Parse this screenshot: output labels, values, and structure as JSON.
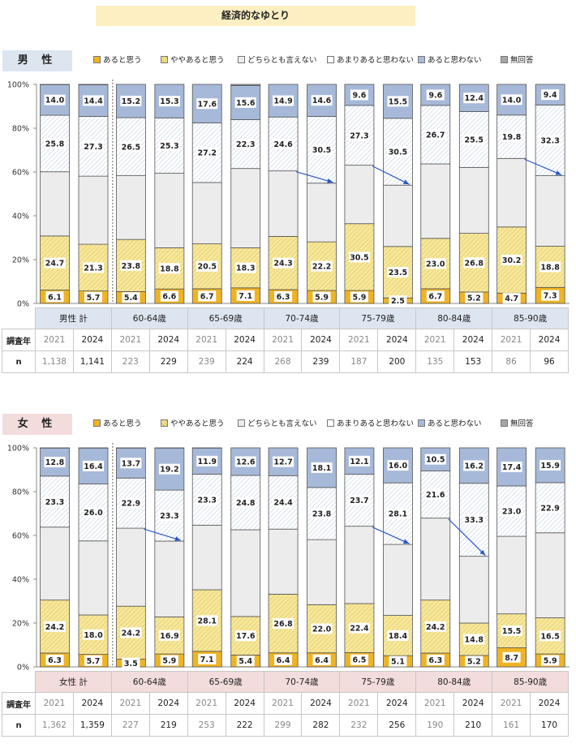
{
  "title": "経済的なゆとり",
  "legend": [
    {
      "label": "あると思う",
      "color": "#f0b423",
      "pattern": "solid"
    },
    {
      "label": "ややあると思う",
      "color": "#f7e79a",
      "pattern": "hatch"
    },
    {
      "label": "どちらとも言えない",
      "color": "#ececec",
      "pattern": "solid"
    },
    {
      "label": "あまりあると思わない",
      "color": "#ffffff",
      "pattern": "solid"
    },
    {
      "label": "あると思わない",
      "color": "#a6b9d9",
      "pattern": "solid"
    },
    {
      "label": "無回答",
      "color": "#a6a6a6",
      "pattern": "solid"
    }
  ],
  "colors": {
    "male_label_bg": "#dde5f1",
    "female_label_bg": "#f3dcdc",
    "male_header_bg": "#dde5f1",
    "female_header_bg": "#f3dcdc",
    "arrow": "#2a56c6",
    "bar_border": "#555555"
  },
  "y_ticks": [
    "0%",
    "20%",
    "40%",
    "60%",
    "80%",
    "100%"
  ],
  "row_labels": {
    "year": "調査年",
    "n": "n"
  },
  "chart_data": [
    {
      "type": "bar",
      "stacked": true,
      "panel": "男 性",
      "ylim": [
        0,
        100
      ],
      "groups": [
        "男性 計",
        "60-64歳",
        "65-69歳",
        "70-74歳",
        "75-79歳",
        "80-84歳",
        "85-90歳"
      ],
      "years": [
        "2021",
        "2024"
      ],
      "n": [
        [
          "1,138",
          "1,141"
        ],
        [
          "223",
          "229"
        ],
        [
          "239",
          "224"
        ],
        [
          "268",
          "239"
        ],
        [
          "187",
          "200"
        ],
        [
          "135",
          "153"
        ],
        [
          "86",
          "96"
        ]
      ],
      "bars": [
        [
          6.1,
          24.7,
          29.3,
          25.8,
          14.0,
          0.1
        ],
        [
          5.7,
          21.3,
          31.1,
          27.3,
          14.4,
          0.2
        ],
        [
          5.4,
          23.8,
          29.1,
          26.5,
          15.2,
          0.0
        ],
        [
          6.6,
          18.8,
          34.0,
          25.3,
          15.3,
          0.0
        ],
        [
          6.7,
          20.5,
          28.0,
          27.2,
          17.6,
          0.0
        ],
        [
          7.1,
          18.3,
          36.2,
          22.3,
          15.6,
          0.5
        ],
        [
          6.3,
          24.3,
          29.9,
          24.6,
          14.9,
          0.0
        ],
        [
          5.9,
          22.2,
          26.8,
          30.5,
          14.6,
          0.0
        ],
        [
          5.9,
          30.5,
          26.7,
          27.3,
          9.6,
          0.0
        ],
        [
          2.5,
          23.5,
          28.0,
          30.5,
          15.5,
          0.0
        ],
        [
          6.7,
          23.0,
          34.0,
          26.7,
          9.6,
          0.0
        ],
        [
          5.2,
          26.8,
          30.1,
          25.5,
          12.4,
          0.0
        ],
        [
          4.7,
          30.2,
          31.3,
          19.8,
          14.0,
          0.0
        ],
        [
          7.3,
          18.8,
          32.2,
          32.3,
          9.4,
          0.0
        ]
      ],
      "labels": [
        [
          "6.1",
          "24.7",
          "",
          "25.8",
          "14.0"
        ],
        [
          "5.7",
          "21.3",
          "",
          "27.3",
          "14.4"
        ],
        [
          "5.4",
          "23.8",
          "",
          "26.5",
          "15.2"
        ],
        [
          "6.6",
          "18.8",
          "",
          "25.3",
          "15.3"
        ],
        [
          "6.7",
          "20.5",
          "",
          "27.2",
          "17.6"
        ],
        [
          "7.1",
          "18.3",
          "",
          "22.3",
          "15.6"
        ],
        [
          "6.3",
          "24.3",
          "",
          "24.6",
          "14.9"
        ],
        [
          "5.9",
          "22.2",
          "",
          "30.5",
          "14.6"
        ],
        [
          "5.9",
          "30.5",
          "",
          "27.3",
          "9.6"
        ],
        [
          "2.5",
          "23.5",
          "",
          "30.5",
          "15.5"
        ],
        [
          "6.7",
          "23.0",
          "",
          "26.7",
          "9.6"
        ],
        [
          "5.2",
          "26.8",
          "",
          "25.5",
          "12.4"
        ],
        [
          "4.7",
          "30.2",
          "",
          "19.8",
          "14.0"
        ],
        [
          "7.3",
          "18.8",
          "",
          "32.3",
          "9.4"
        ]
      ],
      "arrows": [
        [
          6,
          7
        ],
        [
          8,
          9
        ],
        [
          12,
          13
        ]
      ]
    },
    {
      "type": "bar",
      "stacked": true,
      "panel": "女 性",
      "ylim": [
        0,
        100
      ],
      "groups": [
        "女性 計",
        "60-64歳",
        "65-69歳",
        "70-74歳",
        "75-79歳",
        "80-84歳",
        "85-90歳"
      ],
      "years": [
        "2021",
        "2024"
      ],
      "n": [
        [
          "1,362",
          "1,359"
        ],
        [
          "227",
          "219"
        ],
        [
          "253",
          "222"
        ],
        [
          "299",
          "282"
        ],
        [
          "232",
          "256"
        ],
        [
          "190",
          "210"
        ],
        [
          "161",
          "170"
        ]
      ],
      "bars": [
        [
          6.3,
          24.2,
          33.3,
          23.3,
          12.8,
          0.1
        ],
        [
          5.7,
          18.0,
          33.8,
          26.0,
          16.4,
          0.1
        ],
        [
          3.5,
          24.2,
          35.6,
          22.9,
          13.7,
          0.1
        ],
        [
          5.9,
          16.9,
          34.6,
          23.3,
          19.2,
          0.1
        ],
        [
          7.1,
          28.1,
          29.5,
          23.3,
          11.9,
          0.1
        ],
        [
          5.4,
          17.6,
          39.6,
          24.8,
          12.6,
          0.0
        ],
        [
          6.4,
          26.8,
          29.7,
          24.4,
          12.7,
          0.0
        ],
        [
          6.4,
          22.0,
          29.7,
          23.8,
          18.1,
          0.0
        ],
        [
          6.5,
          22.4,
          35.3,
          23.7,
          12.1,
          0.0
        ],
        [
          5.1,
          18.4,
          32.4,
          28.1,
          16.0,
          0.0
        ],
        [
          6.3,
          24.2,
          37.4,
          21.6,
          10.5,
          0.0
        ],
        [
          5.2,
          14.8,
          30.5,
          33.3,
          16.2,
          0.0
        ],
        [
          8.7,
          15.5,
          35.4,
          23.0,
          17.4,
          0.0
        ],
        [
          5.9,
          16.5,
          38.8,
          22.9,
          15.9,
          0.0
        ]
      ],
      "labels": [
        [
          "6.3",
          "24.2",
          "",
          "23.3",
          "12.8"
        ],
        [
          "5.7",
          "18.0",
          "",
          "26.0",
          "16.4"
        ],
        [
          "3.5",
          "24.2",
          "",
          "22.9",
          "13.7"
        ],
        [
          "5.9",
          "16.9",
          "",
          "23.3",
          "19.2"
        ],
        [
          "7.1",
          "28.1",
          "",
          "23.3",
          "11.9"
        ],
        [
          "5.4",
          "17.6",
          "",
          "24.8",
          "12.6"
        ],
        [
          "6.4",
          "26.8",
          "",
          "24.4",
          "12.7"
        ],
        [
          "6.4",
          "22.0",
          "",
          "23.8",
          "18.1"
        ],
        [
          "6.5",
          "22.4",
          "",
          "23.7",
          "12.1"
        ],
        [
          "5.1",
          "18.4",
          "",
          "28.1",
          "16.0"
        ],
        [
          "6.3",
          "24.2",
          "",
          "21.6",
          "10.5"
        ],
        [
          "5.2",
          "14.8",
          "",
          "33.3",
          "16.2"
        ],
        [
          "8.7",
          "15.5",
          "",
          "23.0",
          "17.4"
        ],
        [
          "5.9",
          "16.5",
          "",
          "22.9",
          "15.9"
        ]
      ],
      "arrows": [
        [
          2,
          3
        ],
        [
          8,
          9
        ],
        [
          10,
          11
        ]
      ]
    }
  ]
}
